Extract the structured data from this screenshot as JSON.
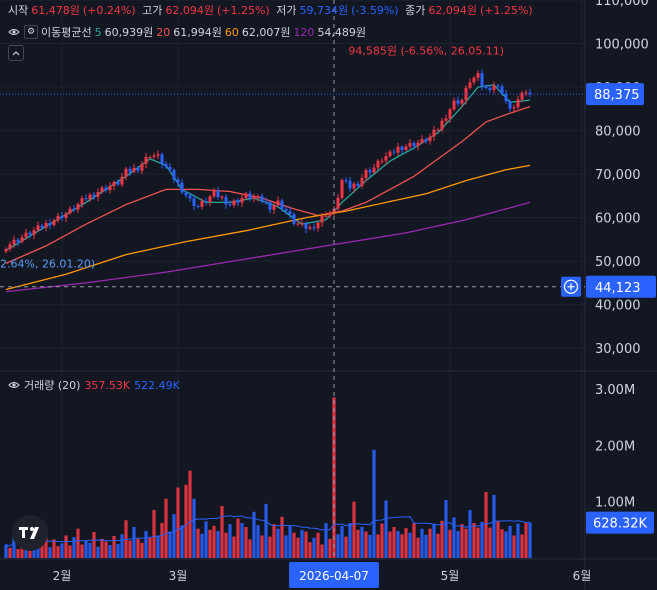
{
  "legend": {
    "open_label": "시작",
    "open_value": "61,478원",
    "open_change": "(+0.24%)",
    "high_label": "고가",
    "high_value": "62,094원",
    "high_change": "(+1.25%)",
    "low_label": "저가",
    "low_value": "59,734원",
    "low_change": "(-3.59%)",
    "close_label": "종가",
    "close_value": "62,094원",
    "close_change": "(+1.25%)"
  },
  "ma_legend": {
    "title": "이동평균선",
    "p5": "5",
    "v5": "60,939원",
    "p20": "20",
    "v20": "61,994원",
    "p60": "60",
    "v60": "62,007원",
    "p120": "120",
    "v120": "54,489원"
  },
  "volume_legend": {
    "title": "거래량 (20)",
    "v1": "357.53K",
    "v2": "522.49K"
  },
  "colors": {
    "background": "#131722",
    "up": "#f23645",
    "down": "#2962ff",
    "ma5": "#26a69a",
    "ma20": "#ef5350",
    "ma60": "#ff9800",
    "ma120": "#9c27b0",
    "price_tag": "#2962ff"
  },
  "chart_data": {
    "type": "candlestick",
    "price_axis": {
      "min": 25000,
      "max": 110000,
      "ticks": [
        "110,000",
        "100,000",
        "90,000",
        "80,000",
        "70,000",
        "60,000",
        "50,000",
        "40,000",
        "30,000"
      ],
      "tick_values": [
        110000,
        100000,
        90000,
        80000,
        70000,
        60000,
        50000,
        40000,
        30000
      ]
    },
    "volume_axis": {
      "min": 0,
      "max": 3300000,
      "ticks": [
        "3.00M",
        "2.00M",
        "1.00M"
      ],
      "tick_values": [
        3000000,
        2000000,
        1000000
      ]
    },
    "x_labels": [
      {
        "label": "2월",
        "index": 14
      },
      {
        "label": "3월",
        "index": 43
      },
      {
        "label": "5월",
        "index": 111
      },
      {
        "label": "6월",
        "index": 144
      }
    ],
    "crosshair": {
      "index": 82,
      "date_label": "2026-04-07",
      "price": 44123,
      "price_label": "44,123"
    },
    "last_price": {
      "value": 88375,
      "label": "88,375"
    },
    "last_volume": {
      "value": 628320,
      "label": "628.32K"
    },
    "annotations": [
      {
        "text": "94,585원 (-6.56%, 26.05.11)",
        "index": 118,
        "price": 97500,
        "align": "right"
      },
      {
        "text": "2.64%, 26.01.20)",
        "index": 0,
        "price": 48500,
        "align": "left"
      }
    ],
    "candle_points": [
      [
        0,
        53500
      ],
      [
        3,
        55000
      ],
      [
        8,
        57500
      ],
      [
        12,
        59500
      ],
      [
        16,
        61500
      ],
      [
        20,
        64500
      ],
      [
        24,
        66500
      ],
      [
        28,
        68000
      ],
      [
        30,
        70500
      ],
      [
        33,
        71500
      ],
      [
        36,
        74500
      ],
      [
        38,
        74000
      ],
      [
        40,
        71500
      ],
      [
        42,
        69000
      ],
      [
        44,
        66500
      ],
      [
        46,
        64000
      ],
      [
        48,
        62500
      ],
      [
        50,
        64000
      ],
      [
        52,
        65500
      ],
      [
        54,
        64500
      ],
      [
        56,
        63000
      ],
      [
        58,
        64000
      ],
      [
        60,
        65000
      ],
      [
        62,
        64500
      ],
      [
        64,
        64000
      ],
      [
        66,
        62500
      ],
      [
        68,
        63500
      ],
      [
        70,
        61500
      ],
      [
        72,
        59000
      ],
      [
        74,
        58000
      ],
      [
        76,
        57500
      ],
      [
        78,
        59000
      ],
      [
        80,
        61000
      ],
      [
        82,
        61500
      ],
      [
        84,
        68500
      ],
      [
        86,
        67000
      ],
      [
        88,
        68000
      ],
      [
        90,
        70500
      ],
      [
        92,
        71500
      ],
      [
        94,
        73500
      ],
      [
        96,
        74500
      ],
      [
        98,
        76000
      ],
      [
        100,
        76500
      ],
      [
        102,
        77000
      ],
      [
        104,
        77500
      ],
      [
        106,
        78500
      ],
      [
        108,
        80500
      ],
      [
        110,
        83500
      ],
      [
        112,
        86500
      ],
      [
        114,
        87000
      ],
      [
        116,
        91500
      ],
      [
        118,
        92500
      ],
      [
        119,
        90500
      ],
      [
        120,
        89500
      ],
      [
        122,
        90500
      ],
      [
        124,
        89000
      ],
      [
        126,
        84500
      ],
      [
        128,
        87000
      ],
      [
        130,
        89000
      ],
      [
        131,
        88375
      ]
    ],
    "volume_series": {
      "name": "",
      "values": [
        0.24,
        0.18,
        0.42,
        0.16,
        0.3,
        0.58,
        0.2,
        0.36,
        0.22,
        0.28,
        0.44,
        0.19,
        0.33,
        0.21,
        0.26,
        0.4,
        0.22,
        0.37,
        0.52,
        0.24,
        0.31,
        0.27,
        0.46,
        0.2,
        0.34,
        0.29,
        0.23,
        0.39,
        0.25,
        0.42,
        0.67,
        0.31,
        0.55,
        0.34,
        0.27,
        0.48,
        0.36,
        0.85,
        0.4,
        0.62,
        1.05,
        0.47,
        0.78,
        1.25,
        0.58,
        1.3,
        1.55,
        1.05,
        0.52,
        0.43,
        0.65,
        0.5,
        0.57,
        0.48,
        0.92,
        0.45,
        0.6,
        0.38,
        0.7,
        0.62,
        0.55,
        0.33,
        0.82,
        0.58,
        0.4,
        0.96,
        0.38,
        0.6,
        0.52,
        0.73,
        0.4,
        0.58,
        0.45,
        0.36,
        0.5,
        0.47,
        0.28,
        0.36,
        0.45,
        0.24,
        0.62,
        0.34,
        2.85,
        0.42,
        0.57,
        0.38,
        0.62,
        1.0,
        0.5,
        0.55,
        0.47,
        0.41,
        1.92,
        0.42,
        0.61,
        1.02,
        0.47,
        0.55,
        0.48,
        0.42,
        0.53,
        0.45,
        0.62,
        0.36,
        0.52,
        0.41,
        0.52,
        0.61,
        0.43,
        0.66,
        1.03,
        0.5,
        0.72,
        0.48,
        0.6,
        0.52,
        0.85,
        0.62,
        0.54,
        0.64,
        1.17,
        0.54,
        1.12,
        0.65,
        0.51,
        0.47,
        0.57,
        0.4,
        0.61,
        0.42,
        0.63,
        0.63
      ]
    },
    "ma_series": [
      {
        "period": "5",
        "points": [
          [
            0,
            52500
          ],
          [
            10,
            58000
          ],
          [
            20,
            63500
          ],
          [
            30,
            69500
          ],
          [
            36,
            73500
          ],
          [
            40,
            72000
          ],
          [
            44,
            66500
          ],
          [
            50,
            63500
          ],
          [
            56,
            63500
          ],
          [
            62,
            64500
          ],
          [
            68,
            62500
          ],
          [
            74,
            58500
          ],
          [
            80,
            59500
          ],
          [
            84,
            63500
          ],
          [
            90,
            68500
          ],
          [
            96,
            73000
          ],
          [
            102,
            76000
          ],
          [
            108,
            79500
          ],
          [
            114,
            85500
          ],
          [
            118,
            90000
          ],
          [
            122,
            90500
          ],
          [
            126,
            86500
          ],
          [
            131,
            87000
          ]
        ]
      },
      {
        "period": "20",
        "points": [
          [
            0,
            49500
          ],
          [
            10,
            53500
          ],
          [
            20,
            58500
          ],
          [
            30,
            63000
          ],
          [
            40,
            66500
          ],
          [
            48,
            66500
          ],
          [
            56,
            66000
          ],
          [
            64,
            64500
          ],
          [
            72,
            62000
          ],
          [
            78,
            60500
          ],
          [
            84,
            61500
          ],
          [
            90,
            63500
          ],
          [
            96,
            66500
          ],
          [
            102,
            69500
          ],
          [
            108,
            73500
          ],
          [
            114,
            77500
          ],
          [
            120,
            82000
          ],
          [
            126,
            84000
          ],
          [
            131,
            85500
          ]
        ]
      },
      {
        "period": "60",
        "points": [
          [
            0,
            43500
          ],
          [
            15,
            47000
          ],
          [
            30,
            51500
          ],
          [
            45,
            54500
          ],
          [
            60,
            57000
          ],
          [
            75,
            60000
          ],
          [
            85,
            61500
          ],
          [
            95,
            63500
          ],
          [
            105,
            65500
          ],
          [
            115,
            68500
          ],
          [
            125,
            71000
          ],
          [
            131,
            72000
          ]
        ]
      },
      {
        "period": "120",
        "points": [
          [
            0,
            43000
          ],
          [
            20,
            45000
          ],
          [
            40,
            47500
          ],
          [
            60,
            50500
          ],
          [
            80,
            53500
          ],
          [
            100,
            56500
          ],
          [
            115,
            59500
          ],
          [
            131,
            63500
          ]
        ]
      }
    ]
  }
}
